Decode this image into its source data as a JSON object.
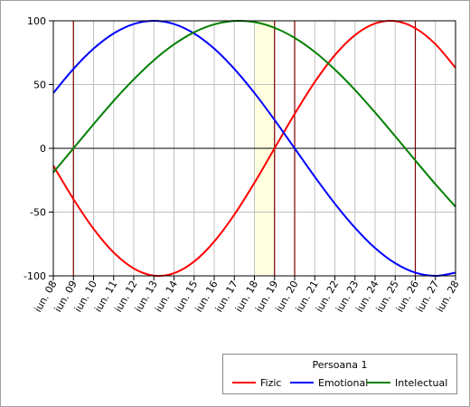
{
  "chart_data": {
    "type": "line",
    "title": "",
    "xlabel": "",
    "ylabel": "",
    "x": [
      "iun. 08",
      "iun. 09",
      "iun. 10",
      "iun. 11",
      "iun. 12",
      "iun. 13",
      "iun. 14",
      "iun. 15",
      "iun. 16",
      "iun. 17",
      "iun. 18",
      "iun. 19",
      "iun. 20",
      "iun. 21",
      "iun. 22",
      "iun. 23",
      "iun. 24",
      "iun. 25",
      "iun. 26",
      "iun. 27",
      "iun. 28"
    ],
    "xlim": [
      0,
      20
    ],
    "ylim": [
      -100,
      100
    ],
    "yticks": [
      100,
      50,
      0,
      -50,
      -100
    ],
    "grid": true,
    "series": [
      {
        "name": "Fizic",
        "color": "#ff0000",
        "values": [
          -13.6,
          -39.8,
          -63.1,
          -81.7,
          -94.2,
          -99.8,
          -97.9,
          -88.8,
          -73.1,
          -52.0,
          -27.0,
          0.0,
          27.0,
          52.0,
          73.1,
          88.8,
          97.9,
          99.8,
          94.2,
          81.7,
          63.1
        ]
      },
      {
        "name": "Emotional",
        "color": "#0000ff",
        "values": [
          43.4,
          62.3,
          78.2,
          90.1,
          97.5,
          100.0,
          97.5,
          90.1,
          78.2,
          62.3,
          43.4,
          22.3,
          0.0,
          -22.3,
          -43.4,
          -62.3,
          -78.2,
          -90.1,
          -97.5,
          -100.0,
          -97.5
        ]
      },
      {
        "name": "Intelectual",
        "color": "#008000",
        "values": [
          -18.9,
          0.0,
          18.9,
          37.2,
          54.1,
          69.1,
          81.5,
          91.0,
          97.2,
          99.9,
          99.0,
          94.5,
          86.6,
          75.6,
          61.8,
          45.8,
          28.1,
          9.5,
          -9.5,
          -28.1,
          -45.8
        ]
      }
    ],
    "vertical_markers_x": [
      1,
      11,
      12,
      18
    ],
    "highlight_range_x": [
      10,
      11
    ],
    "legend": {
      "title": "Persoana 1",
      "position": "bottom-right"
    },
    "colors": {
      "marker": "#800000",
      "highlight": "#ffffe0",
      "grid": "#c0c0c0",
      "axis": "#000000"
    }
  }
}
